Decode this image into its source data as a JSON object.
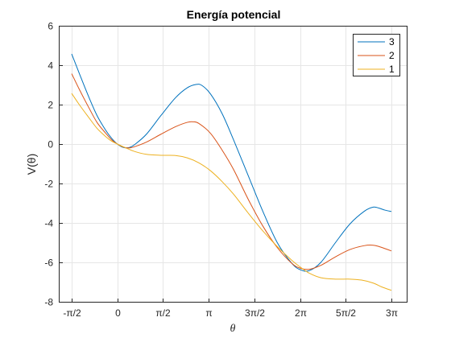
{
  "chart_data": {
    "type": "line",
    "title": "Energía potencial",
    "xlabel": "θ",
    "ylabel": "V(θ)",
    "xlim": [
      -1.5708,
      9.4248
    ],
    "ylim": [
      -8,
      6
    ],
    "grid": true,
    "legend_placement": "top-right",
    "x_ticks": [
      {
        "value": -1.5708,
        "label": "-π/2"
      },
      {
        "value": 0,
        "label": "0"
      },
      {
        "value": 1.5708,
        "label": "π/2"
      },
      {
        "value": 3.1416,
        "label": "π"
      },
      {
        "value": 4.7124,
        "label": "3π/2"
      },
      {
        "value": 6.2832,
        "label": "2π"
      },
      {
        "value": 7.854,
        "label": "5π/2"
      },
      {
        "value": 9.4248,
        "label": "3π"
      }
    ],
    "y_ticks": [
      {
        "value": -8,
        "label": "-8"
      },
      {
        "value": -6,
        "label": "-6"
      },
      {
        "value": -4,
        "label": "-4"
      },
      {
        "value": -2,
        "label": "-2"
      },
      {
        "value": 0,
        "label": "0"
      },
      {
        "value": 2,
        "label": "2"
      },
      {
        "value": 4,
        "label": "4"
      },
      {
        "value": 6,
        "label": "6"
      }
    ],
    "series": [
      {
        "name": "3",
        "color": "#0072BD",
        "points": [
          [
            -1.5708,
            4.57
          ],
          [
            -1.3,
            3.55
          ],
          [
            -1.0,
            2.45
          ],
          [
            -0.7,
            1.45
          ],
          [
            -0.4,
            0.7
          ],
          [
            -0.2,
            0.3
          ],
          [
            0.0,
            0.0
          ],
          [
            0.2,
            -0.17
          ],
          [
            0.4,
            -0.18
          ],
          [
            0.6,
            -0.02
          ],
          [
            1.0,
            0.5
          ],
          [
            1.5,
            1.45
          ],
          [
            2.0,
            2.35
          ],
          [
            2.4,
            2.85
          ],
          [
            2.7,
            3.02
          ],
          [
            2.9,
            2.98
          ],
          [
            3.2,
            2.55
          ],
          [
            3.6,
            1.55
          ],
          [
            4.0,
            0.2
          ],
          [
            4.5,
            -1.6
          ],
          [
            5.0,
            -3.4
          ],
          [
            5.5,
            -5.0
          ],
          [
            6.0,
            -6.05
          ],
          [
            6.3,
            -6.38
          ],
          [
            6.6,
            -6.42
          ],
          [
            7.0,
            -6.0
          ],
          [
            7.5,
            -5.0
          ],
          [
            8.0,
            -4.05
          ],
          [
            8.5,
            -3.4
          ],
          [
            8.8,
            -3.2
          ],
          [
            9.0,
            -3.25
          ],
          [
            9.2,
            -3.35
          ],
          [
            9.4248,
            -3.42
          ]
        ]
      },
      {
        "name": "2",
        "color": "#D95319",
        "points": [
          [
            -1.5708,
            3.57
          ],
          [
            -1.3,
            2.75
          ],
          [
            -1.0,
            1.9
          ],
          [
            -0.7,
            1.1
          ],
          [
            -0.4,
            0.55
          ],
          [
            -0.2,
            0.22
          ],
          [
            0.0,
            0.0
          ],
          [
            0.2,
            -0.15
          ],
          [
            0.4,
            -0.2
          ],
          [
            0.6,
            -0.13
          ],
          [
            1.0,
            0.1
          ],
          [
            1.5,
            0.5
          ],
          [
            2.0,
            0.88
          ],
          [
            2.4,
            1.1
          ],
          [
            2.6,
            1.13
          ],
          [
            2.8,
            1.05
          ],
          [
            3.2,
            0.55
          ],
          [
            3.6,
            -0.3
          ],
          [
            4.0,
            -1.3
          ],
          [
            4.5,
            -2.8
          ],
          [
            5.0,
            -4.15
          ],
          [
            5.5,
            -5.25
          ],
          [
            6.0,
            -6.05
          ],
          [
            6.3,
            -6.3
          ],
          [
            6.6,
            -6.35
          ],
          [
            7.0,
            -6.15
          ],
          [
            7.5,
            -5.72
          ],
          [
            8.0,
            -5.35
          ],
          [
            8.5,
            -5.15
          ],
          [
            8.8,
            -5.13
          ],
          [
            9.0,
            -5.2
          ],
          [
            9.2,
            -5.3
          ],
          [
            9.4248,
            -5.42
          ]
        ]
      },
      {
        "name": "1",
        "color": "#EDB120",
        "points": [
          [
            -1.5708,
            2.57
          ],
          [
            -1.3,
            1.98
          ],
          [
            -1.0,
            1.38
          ],
          [
            -0.7,
            0.8
          ],
          [
            -0.4,
            0.38
          ],
          [
            -0.2,
            0.15
          ],
          [
            0.0,
            0.0
          ],
          [
            0.3,
            -0.2
          ],
          [
            0.6,
            -0.38
          ],
          [
            1.0,
            -0.52
          ],
          [
            1.5,
            -0.57
          ],
          [
            2.0,
            -0.58
          ],
          [
            2.4,
            -0.7
          ],
          [
            2.8,
            -0.95
          ],
          [
            3.2,
            -1.35
          ],
          [
            3.6,
            -1.9
          ],
          [
            4.0,
            -2.55
          ],
          [
            4.5,
            -3.5
          ],
          [
            5.0,
            -4.4
          ],
          [
            5.5,
            -5.2
          ],
          [
            6.0,
            -5.9
          ],
          [
            6.3,
            -6.25
          ],
          [
            6.6,
            -6.55
          ],
          [
            7.0,
            -6.78
          ],
          [
            7.5,
            -6.85
          ],
          [
            8.0,
            -6.85
          ],
          [
            8.4,
            -6.9
          ],
          [
            8.8,
            -7.05
          ],
          [
            9.1,
            -7.25
          ],
          [
            9.4248,
            -7.42
          ]
        ]
      }
    ]
  }
}
